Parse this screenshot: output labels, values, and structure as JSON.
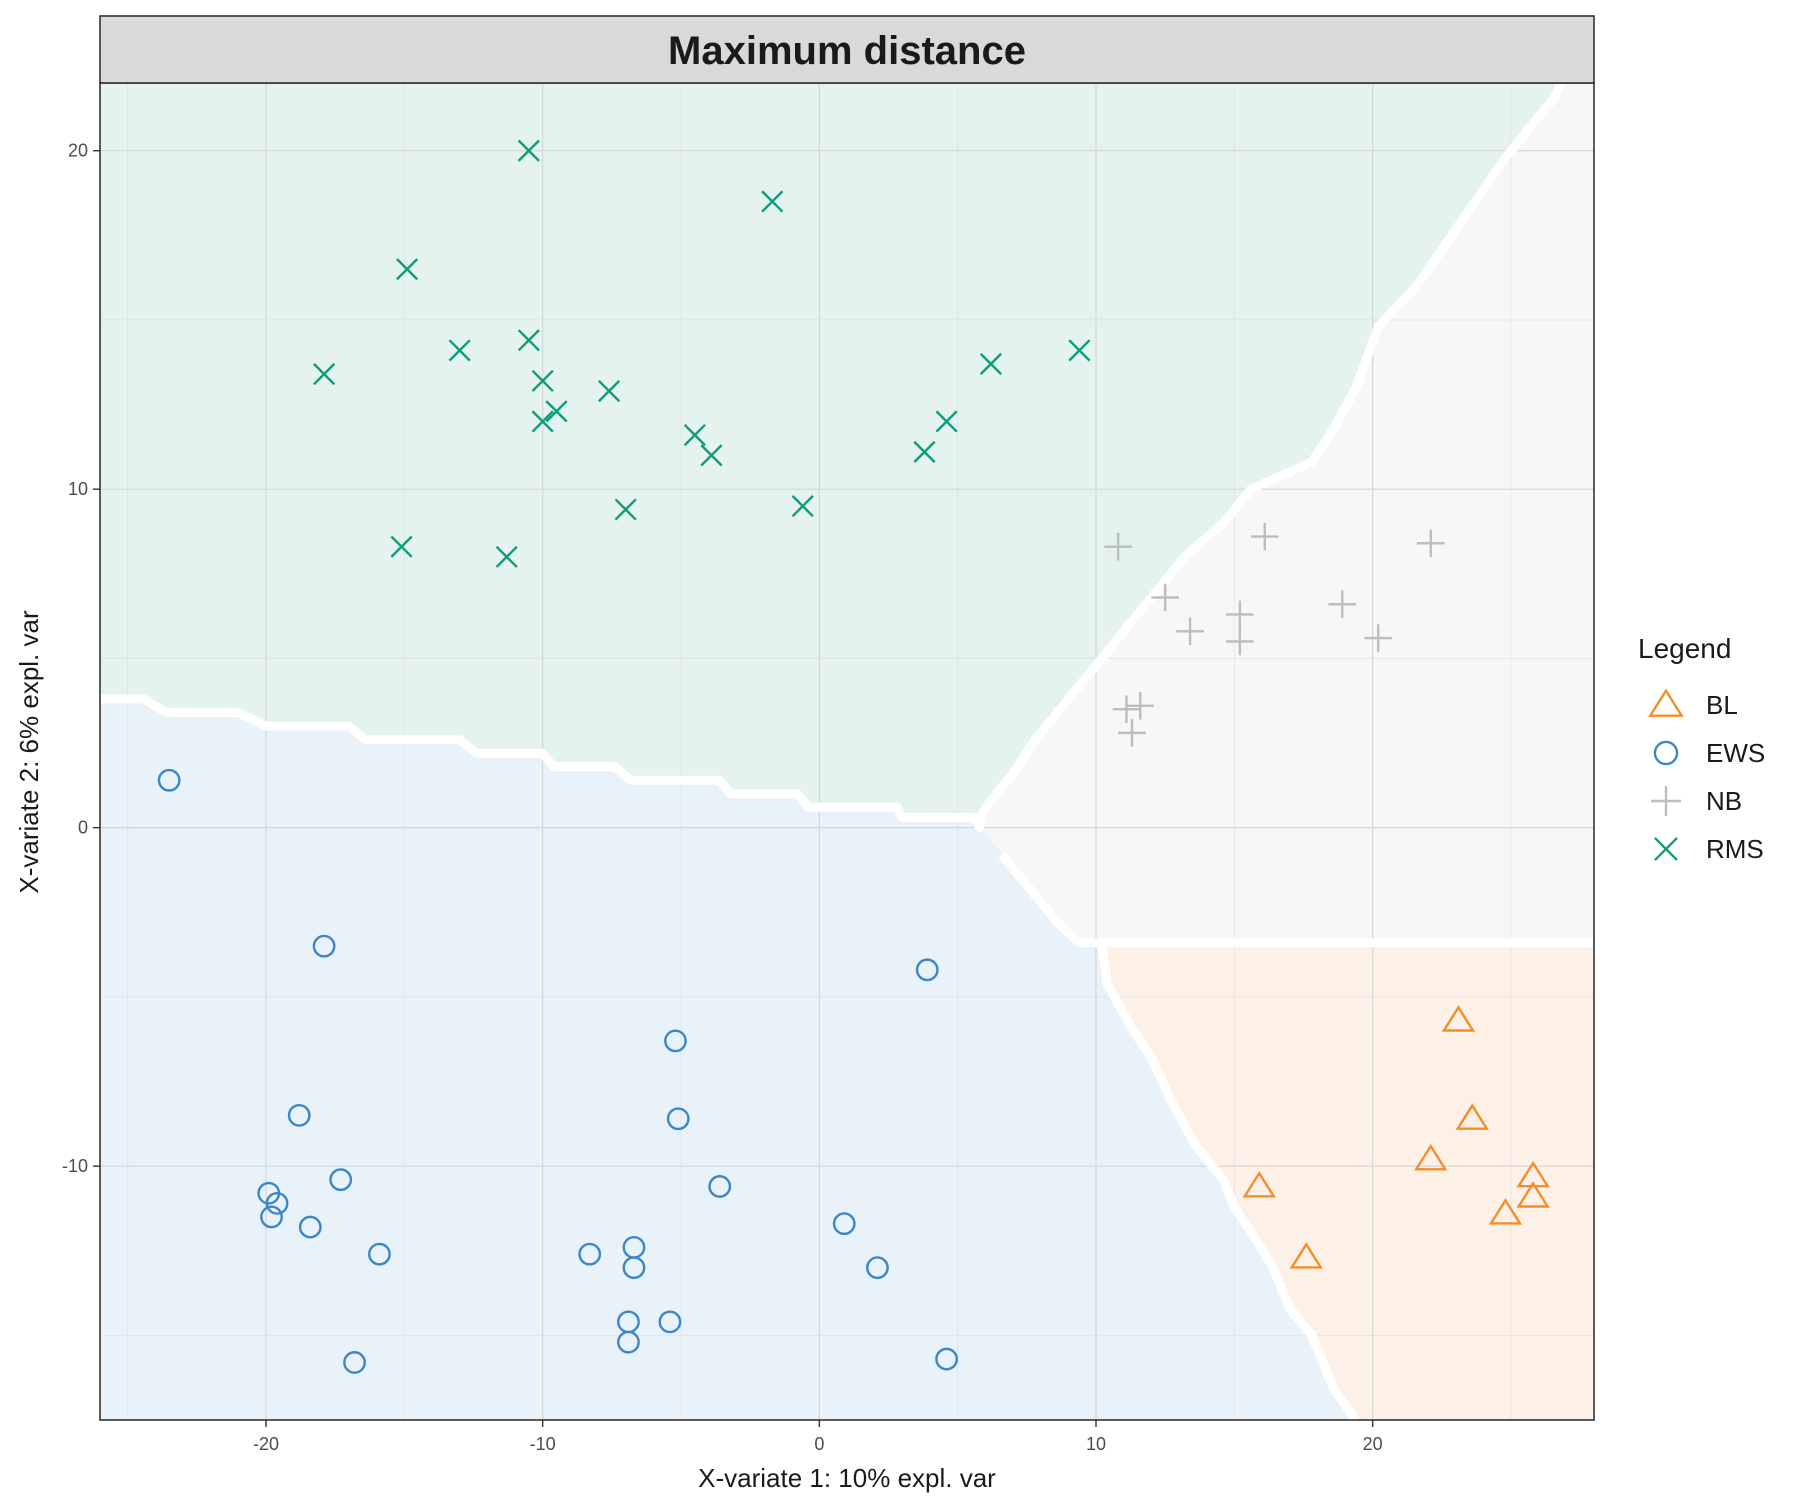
{
  "chart_data": {
    "type": "scatter",
    "title": "Maximum distance",
    "xlabel": "X-variate 1: 10% expl. var",
    "ylabel": "X-variate 2: 6% expl. var",
    "xlim": [
      -26,
      28
    ],
    "ylim": [
      -17.5,
      22
    ],
    "xticks": [
      -20,
      -10,
      0,
      10,
      20
    ],
    "yticks": [
      -10,
      0,
      10,
      20
    ],
    "xtick_labels": [
      "-20",
      "-10",
      "0",
      "10",
      "20"
    ],
    "ytick_labels": [
      "-10",
      "0",
      "10",
      "20"
    ],
    "grid": true,
    "legend": {
      "title": "Legend",
      "position": "right"
    },
    "background_regions": [
      {
        "class": "RMS",
        "color": "#e4f3ef",
        "polygon": [
          [
            -26,
            3.8
          ],
          [
            -24.4,
            3.8
          ],
          [
            -23.6,
            3.4
          ],
          [
            -21,
            3.4
          ],
          [
            -20,
            3.0
          ],
          [
            -17,
            3.0
          ],
          [
            -16.4,
            2.6
          ],
          [
            -13,
            2.6
          ],
          [
            -12.4,
            2.2
          ],
          [
            -10,
            2.2
          ],
          [
            -9.6,
            1.8
          ],
          [
            -7.4,
            1.8
          ],
          [
            -6.8,
            1.4
          ],
          [
            -3.6,
            1.4
          ],
          [
            -3.2,
            1.0
          ],
          [
            -0.8,
            1.0
          ],
          [
            -0.4,
            0.6
          ],
          [
            2.8,
            0.6
          ],
          [
            3.0,
            0.3
          ],
          [
            5.6,
            0.3
          ],
          [
            5.8,
            0.0
          ],
          [
            5.8,
            0.3
          ],
          [
            6.2,
            0.8
          ],
          [
            7.0,
            1.6
          ],
          [
            7.8,
            2.6
          ],
          [
            8.6,
            3.4
          ],
          [
            9.4,
            4.2
          ],
          [
            10.4,
            5.2
          ],
          [
            11.2,
            6.0
          ],
          [
            12.2,
            7.0
          ],
          [
            13.2,
            8.0
          ],
          [
            14.6,
            9.0
          ],
          [
            15.6,
            10.0
          ],
          [
            17.8,
            10.8
          ],
          [
            18.6,
            11.8
          ],
          [
            19.4,
            13.0
          ],
          [
            20.2,
            14.8
          ],
          [
            21.6,
            16.0
          ],
          [
            22.6,
            17.2
          ],
          [
            23.8,
            18.6
          ],
          [
            24.8,
            19.8
          ],
          [
            25.8,
            20.8
          ],
          [
            26.6,
            21.6
          ],
          [
            26.8,
            22
          ],
          [
            -26,
            22
          ]
        ]
      },
      {
        "class": "NB",
        "color": "#f7f7f7",
        "polygon": [
          [
            26.8,
            22
          ],
          [
            26.6,
            21.6
          ],
          [
            25.8,
            20.8
          ],
          [
            24.8,
            19.8
          ],
          [
            23.8,
            18.6
          ],
          [
            22.6,
            17.2
          ],
          [
            21.6,
            16.0
          ],
          [
            20.2,
            14.8
          ],
          [
            19.4,
            13.0
          ],
          [
            18.6,
            11.8
          ],
          [
            17.8,
            10.8
          ],
          [
            15.6,
            10.0
          ],
          [
            14.6,
            9.0
          ],
          [
            13.2,
            8.0
          ],
          [
            12.2,
            7.0
          ],
          [
            11.2,
            6.0
          ],
          [
            10.4,
            5.2
          ],
          [
            9.4,
            4.2
          ],
          [
            8.6,
            3.4
          ],
          [
            7.8,
            2.6
          ],
          [
            7.0,
            1.6
          ],
          [
            6.2,
            0.8
          ],
          [
            5.8,
            0.3
          ],
          [
            5.8,
            0.0
          ],
          [
            6.6,
            -0.8
          ],
          [
            7.6,
            -1.8
          ],
          [
            8.6,
            -2.8
          ],
          [
            9.4,
            -3.4
          ],
          [
            10.2,
            -3.4
          ],
          [
            28,
            -3.4
          ],
          [
            28,
            22
          ]
        ]
      },
      {
        "class": "BL",
        "color": "#fdf0e6",
        "polygon": [
          [
            10.2,
            -3.4
          ],
          [
            28,
            -3.4
          ],
          [
            28,
            -17.5
          ],
          [
            19.4,
            -17.5
          ],
          [
            18.6,
            -16.6
          ],
          [
            17.8,
            -15.0
          ],
          [
            17.0,
            -14.2
          ],
          [
            16.4,
            -13.0
          ],
          [
            15.8,
            -12.2
          ],
          [
            15.0,
            -11.2
          ],
          [
            14.6,
            -10.4
          ],
          [
            13.6,
            -9.4
          ],
          [
            12.8,
            -8.2
          ],
          [
            12.0,
            -6.8
          ],
          [
            11.2,
            -5.8
          ],
          [
            10.4,
            -4.6
          ]
        ]
      },
      {
        "class": "EWS",
        "color": "#e9f1f9",
        "polygon": [
          [
            -26,
            3.8
          ],
          [
            -24.4,
            3.8
          ],
          [
            -23.6,
            3.4
          ],
          [
            -21,
            3.4
          ],
          [
            -20,
            3.0
          ],
          [
            -17,
            3.0
          ],
          [
            -16.4,
            2.6
          ],
          [
            -13,
            2.6
          ],
          [
            -12.4,
            2.2
          ],
          [
            -10,
            2.2
          ],
          [
            -9.6,
            1.8
          ],
          [
            -7.4,
            1.8
          ],
          [
            -6.8,
            1.4
          ],
          [
            -3.6,
            1.4
          ],
          [
            -3.2,
            1.0
          ],
          [
            -0.8,
            1.0
          ],
          [
            -0.4,
            0.6
          ],
          [
            2.8,
            0.6
          ],
          [
            3.0,
            0.3
          ],
          [
            5.6,
            0.3
          ],
          [
            5.8,
            0.0
          ],
          [
            6.6,
            -0.8
          ],
          [
            7.6,
            -1.8
          ],
          [
            8.6,
            -2.8
          ],
          [
            9.4,
            -3.4
          ],
          [
            10.2,
            -3.4
          ],
          [
            10.4,
            -4.6
          ],
          [
            11.2,
            -5.8
          ],
          [
            12.0,
            -6.8
          ],
          [
            12.8,
            -8.2
          ],
          [
            13.6,
            -9.4
          ],
          [
            14.6,
            -10.4
          ],
          [
            15.0,
            -11.2
          ],
          [
            15.8,
            -12.2
          ],
          [
            16.4,
            -13.0
          ],
          [
            17.0,
            -14.2
          ],
          [
            17.8,
            -15.0
          ],
          [
            18.6,
            -16.6
          ],
          [
            19.4,
            -17.5
          ],
          [
            -26,
            -17.5
          ]
        ]
      }
    ],
    "series": [
      {
        "name": "BL",
        "marker": "triangle",
        "color": "#f28e2b",
        "points": [
          [
            23.1,
            -5.7
          ],
          [
            23.6,
            -8.6
          ],
          [
            22.1,
            -9.8
          ],
          [
            25.8,
            -10.3
          ],
          [
            25.8,
            -10.9
          ],
          [
            24.8,
            -11.4
          ],
          [
            15.9,
            -10.6
          ],
          [
            17.6,
            -12.7
          ]
        ]
      },
      {
        "name": "EWS",
        "marker": "circle",
        "color": "#3a87c8",
        "points": [
          [
            -23.5,
            1.4
          ],
          [
            -17.9,
            -3.5
          ],
          [
            -18.8,
            -8.5
          ],
          [
            -19.9,
            -10.8
          ],
          [
            -19.6,
            -11.1
          ],
          [
            -19.8,
            -11.5
          ],
          [
            -17.3,
            -10.4
          ],
          [
            -18.4,
            -11.8
          ],
          [
            -15.9,
            -12.6
          ],
          [
            -16.8,
            -15.8
          ],
          [
            -5.2,
            -6.3
          ],
          [
            -5.1,
            -8.6
          ],
          [
            -3.6,
            -10.6
          ],
          [
            -8.3,
            -12.6
          ],
          [
            -6.7,
            -12.4
          ],
          [
            -6.7,
            -13.0
          ],
          [
            -6.9,
            -14.6
          ],
          [
            -6.9,
            -15.2
          ],
          [
            -5.4,
            -14.6
          ],
          [
            0.9,
            -11.7
          ],
          [
            2.1,
            -13.0
          ],
          [
            3.9,
            -4.2
          ],
          [
            4.6,
            -15.7
          ]
        ]
      },
      {
        "name": "NB",
        "marker": "plus",
        "color": "#bdbdbd",
        "points": [
          [
            10.8,
            8.3
          ],
          [
            12.5,
            6.8
          ],
          [
            13.4,
            5.8
          ],
          [
            15.2,
            6.3
          ],
          [
            15.2,
            5.5
          ],
          [
            16.1,
            8.6
          ],
          [
            18.9,
            6.6
          ],
          [
            20.2,
            5.6
          ],
          [
            22.1,
            8.4
          ],
          [
            11.1,
            3.5
          ],
          [
            11.6,
            3.6
          ],
          [
            11.3,
            2.8
          ]
        ]
      },
      {
        "name": "RMS",
        "marker": "cross",
        "color": "#0f9d74",
        "points": [
          [
            -10.5,
            20.0
          ],
          [
            -1.7,
            18.5
          ],
          [
            -14.9,
            16.5
          ],
          [
            -13.0,
            14.1
          ],
          [
            -17.9,
            13.4
          ],
          [
            -10.5,
            14.4
          ],
          [
            -10.0,
            13.2
          ],
          [
            -10.0,
            12.0
          ],
          [
            -9.5,
            12.3
          ],
          [
            -7.6,
            12.9
          ],
          [
            -4.5,
            11.6
          ],
          [
            -3.9,
            11.0
          ],
          [
            -7.0,
            9.4
          ],
          [
            -0.6,
            9.5
          ],
          [
            -15.1,
            8.3
          ],
          [
            -11.3,
            8.0
          ],
          [
            3.8,
            11.1
          ],
          [
            4.6,
            12.0
          ],
          [
            6.2,
            13.7
          ],
          [
            9.4,
            14.1
          ]
        ]
      }
    ]
  }
}
